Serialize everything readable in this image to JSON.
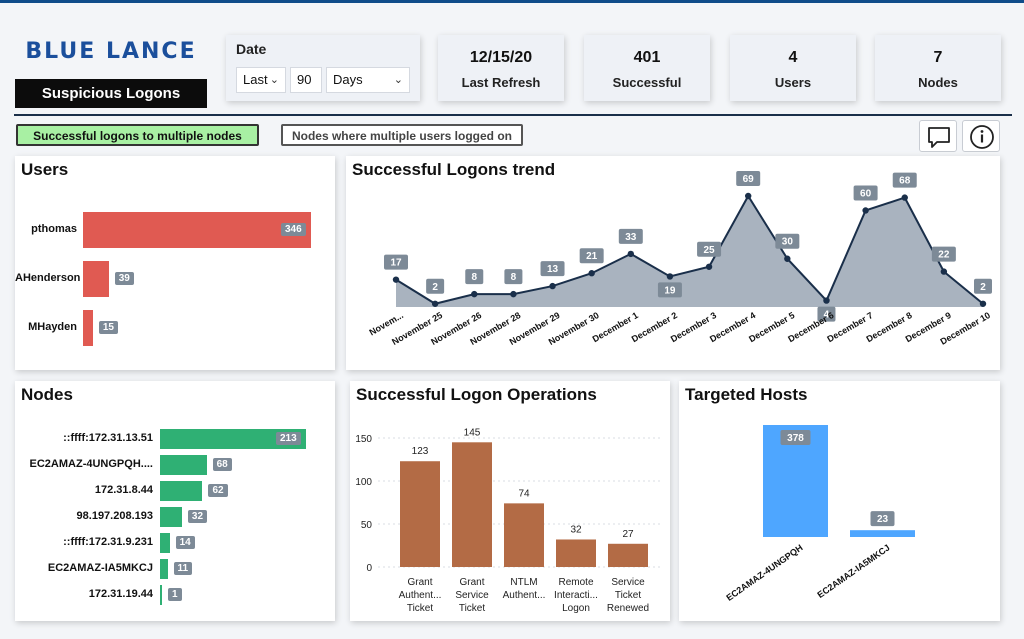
{
  "brand": {
    "logo_text": "BLUE LANCE",
    "page_title": "Suspicious Logons"
  },
  "date_filter": {
    "label": "Date",
    "mode": "Last",
    "amount": "90",
    "unit": "Days"
  },
  "kpis": [
    {
      "value": "12/15/20",
      "label": "Last Refresh"
    },
    {
      "value": "401",
      "label": "Successful"
    },
    {
      "value": "4",
      "label": "Users"
    },
    {
      "value": "7",
      "label": "Nodes"
    }
  ],
  "filters": {
    "active": "Successful logons to multiple nodes",
    "inactive": "Nodes where multiple users logged on"
  },
  "colors": {
    "brand_blue": "#1b4f9c",
    "users_bar": "#e05a52",
    "nodes_bar": "#2fb074",
    "ops_bar": "#b36b45",
    "hosts_bar": "#4ea6ff",
    "trend_fill": "#a9b3bf",
    "trend_line": "#1a2f4a",
    "active_filter": "#a8f0a3"
  },
  "users": {
    "title": "Users",
    "rows": [
      {
        "name": "pthomas",
        "value": 346
      },
      {
        "name": "AHenderson",
        "value": 39
      },
      {
        "name": "MHayden",
        "value": 15
      }
    ]
  },
  "nodes": {
    "title": "Nodes",
    "rows": [
      {
        "name": "::ffff:172.31.13.51",
        "value": 213
      },
      {
        "name": "EC2AMAZ-4UNGPQH....",
        "value": 68
      },
      {
        "name": "172.31.8.44",
        "value": 62
      },
      {
        "name": "98.197.208.193",
        "value": 32
      },
      {
        "name": "::ffff:172.31.9.231",
        "value": 14
      },
      {
        "name": "EC2AMAZ-IA5MKCJ",
        "value": 11
      },
      {
        "name": "172.31.19.44",
        "value": 1
      }
    ]
  },
  "chart_data": [
    {
      "type": "area",
      "title": "Successful Logons trend",
      "categories": [
        "Novem...",
        "November 25",
        "November 26",
        "November 28",
        "November 29",
        "November 30",
        "December 1",
        "December 2",
        "December 3",
        "December 4",
        "December 5",
        "December 6",
        "December 7",
        "December 8",
        "December 9",
        "December 10"
      ],
      "values": [
        17,
        2,
        8,
        8,
        13,
        21,
        33,
        19,
        25,
        69,
        30,
        4,
        60,
        68,
        22,
        2
      ],
      "ylim": [
        0,
        69
      ]
    },
    {
      "type": "bar",
      "title": "Successful Logon Operations",
      "categories": [
        [
          "Grant",
          "Authent...",
          "Ticket"
        ],
        [
          "Grant",
          "Service",
          "Ticket"
        ],
        [
          "NTLM",
          "Authent..."
        ],
        [
          "Remote",
          "Interacti...",
          "Logon"
        ],
        [
          "Service",
          "Ticket",
          "Renewed"
        ]
      ],
      "values": [
        123,
        145,
        74,
        32,
        27
      ],
      "yticks": [
        "0",
        "50",
        "100",
        "150"
      ],
      "ylim": [
        0,
        150
      ]
    },
    {
      "type": "bar",
      "title": "Targeted Hosts",
      "categories": [
        "EC2AMAZ-4UNGPQH",
        "EC2AMAZ-IA5MKCJ"
      ],
      "values": [
        378,
        23
      ],
      "ylim": [
        0,
        378
      ]
    }
  ]
}
